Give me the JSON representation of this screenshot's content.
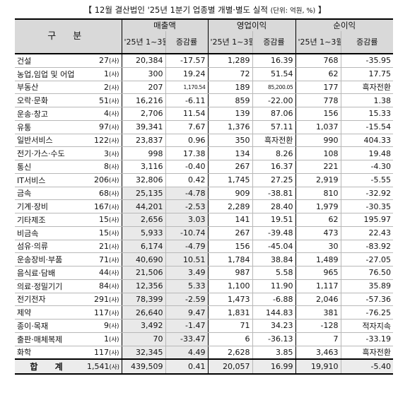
{
  "title": {
    "main": "【 12월 결산법인 '25년 1분기 업종별 개별·별도 실적",
    "unit": "(단위: 억원, %)",
    "close": "】"
  },
  "header": {
    "category": "구 분",
    "groups": [
      "매출액",
      "영업이익",
      "순이익"
    ],
    "period": "'25년 1~3월",
    "change": "증감률",
    "company_unit": "사"
  },
  "rows": [
    {
      "name": "건설",
      "count": "27",
      "sales": "20,384",
      "sales_chg": "-17.57",
      "op": "1,289",
      "op_chg": "16.39",
      "net": "768",
      "net_chg": "-35.95"
    },
    {
      "name": "농업,임업 및 어업",
      "count": "1",
      "sales": "300",
      "sales_chg": "19.24",
      "op": "72",
      "op_chg": "51.54",
      "net": "62",
      "net_chg": "17.75"
    },
    {
      "name": "부동산",
      "count": "2",
      "sales": "207",
      "sales_chg": "1,170.54",
      "op": "189",
      "op_chg": "85,200.05",
      "net": "177",
      "net_chg": "흑자전환"
    },
    {
      "name": "오락·문화",
      "count": "51",
      "sales": "16,216",
      "sales_chg": "-6.11",
      "op": "859",
      "op_chg": "-22.00",
      "net": "778",
      "net_chg": "1.38"
    },
    {
      "name": "운송·창고",
      "count": "4",
      "sales": "2,706",
      "sales_chg": "11.54",
      "op": "139",
      "op_chg": "87.06",
      "net": "156",
      "net_chg": "15.33"
    },
    {
      "name": "유통",
      "count": "97",
      "sales": "39,341",
      "sales_chg": "7.67",
      "op": "1,376",
      "op_chg": "57.11",
      "net": "1,037",
      "net_chg": "-15.54"
    },
    {
      "name": "일반서비스",
      "count": "122",
      "sales": "23,837",
      "sales_chg": "0.96",
      "op": "350",
      "op_chg": "흑자전환",
      "net": "990",
      "net_chg": "404.33"
    },
    {
      "name": "전기·가스·수도",
      "count": "3",
      "sales": "998",
      "sales_chg": "17.38",
      "op": "134",
      "op_chg": "8.26",
      "net": "108",
      "net_chg": "19.48"
    },
    {
      "name": "통신",
      "count": "8",
      "sales": "3,116",
      "sales_chg": "-0.40",
      "op": "267",
      "op_chg": "16.37",
      "net": "221",
      "net_chg": "-4.30"
    },
    {
      "name": "IT서비스",
      "count": "206",
      "sales": "32,806",
      "sales_chg": "0.42",
      "op": "1,745",
      "op_chg": "27.25",
      "net": "2,919",
      "net_chg": "-5.55"
    },
    {
      "name": "금속",
      "count": "68",
      "sales": "25,135",
      "sales_chg": "-4.78",
      "op": "909",
      "op_chg": "-38.81",
      "net": "810",
      "net_chg": "-32.92"
    },
    {
      "name": "기계·장비",
      "count": "167",
      "sales": "44,201",
      "sales_chg": "-2.53",
      "op": "2,289",
      "op_chg": "28.40",
      "net": "1,979",
      "net_chg": "-30.35"
    },
    {
      "name": "기타제조",
      "count": "15",
      "sales": "2,656",
      "sales_chg": "3.03",
      "op": "141",
      "op_chg": "19.51",
      "net": "62",
      "net_chg": "195.97"
    },
    {
      "name": "비금속",
      "count": "15",
      "sales": "5,933",
      "sales_chg": "-10.74",
      "op": "267",
      "op_chg": "-39.48",
      "net": "473",
      "net_chg": "22.43"
    },
    {
      "name": "섬유·의류",
      "count": "21",
      "sales": "6,174",
      "sales_chg": "-4.79",
      "op": "156",
      "op_chg": "-45.04",
      "net": "30",
      "net_chg": "-83.92"
    },
    {
      "name": "운송장비·부품",
      "count": "71",
      "sales": "40,690",
      "sales_chg": "10.51",
      "op": "1,784",
      "op_chg": "38.84",
      "net": "1,489",
      "net_chg": "-27.05"
    },
    {
      "name": "음식료·담배",
      "count": "44",
      "sales": "21,506",
      "sales_chg": "3.49",
      "op": "987",
      "op_chg": "5.58",
      "net": "965",
      "net_chg": "76.50"
    },
    {
      "name": "의료·정밀기기",
      "count": "84",
      "sales": "12,356",
      "sales_chg": "5.33",
      "op": "1,100",
      "op_chg": "11.90",
      "net": "1,117",
      "net_chg": "35.89"
    },
    {
      "name": "전기전자",
      "count": "291",
      "sales": "78,399",
      "sales_chg": "-2.59",
      "op": "1,473",
      "op_chg": "-6.88",
      "net": "2,046",
      "net_chg": "-57.36"
    },
    {
      "name": "제약",
      "count": "117",
      "sales": "26,640",
      "sales_chg": "9.47",
      "op": "1,831",
      "op_chg": "144.83",
      "net": "381",
      "net_chg": "-76.25"
    },
    {
      "name": "종이·목재",
      "count": "9",
      "sales": "3,492",
      "sales_chg": "-1.47",
      "op": "71",
      "op_chg": "34.23",
      "net": "-128",
      "net_chg": "적자지속"
    },
    {
      "name": "출판·매체복제",
      "count": "1",
      "sales": "70",
      "sales_chg": "-33.47",
      "op": "6",
      "op_chg": "-36.13",
      "net": "7",
      "net_chg": "-33.19"
    },
    {
      "name": "화학",
      "count": "117",
      "sales": "32,345",
      "sales_chg": "4.49",
      "op": "2,628",
      "op_chg": "3.85",
      "net": "3,463",
      "net_chg": "흑자전환"
    }
  ],
  "total": {
    "label": "합 계",
    "count": "1,541",
    "sales": "439,509",
    "sales_chg": "0.41",
    "op": "20,057",
    "op_chg": "16.99",
    "net": "19,910",
    "net_chg": "-5.40"
  }
}
